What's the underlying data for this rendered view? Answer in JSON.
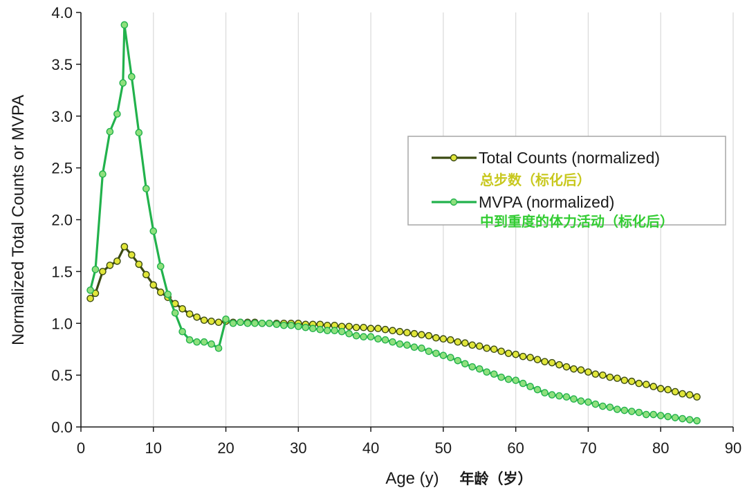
{
  "colors": {
    "total_line": "#3b4a12",
    "total_marker": "#e1e63a",
    "mvpa_line": "#22b24c",
    "mvpa_marker": "#8fe07d",
    "total_cn_text": "#c8c81e",
    "mvpa_cn_text": "#33cc33",
    "grid": "#d9d9d9",
    "axis": "#1a1a1a"
  },
  "chart_data": {
    "type": "line",
    "xlabel": "Age (y)",
    "xlabel_cn": "年龄（岁）",
    "ylabel": "Normalized Total Counts or MVPA",
    "xlim": [
      0,
      90
    ],
    "ylim": [
      0,
      4
    ],
    "xticks": [
      "0",
      "10",
      "20",
      "30",
      "40",
      "50",
      "60",
      "70",
      "80",
      "90"
    ],
    "yticks": [
      "0.0",
      "0.5",
      "1.0",
      "1.5",
      "2.0",
      "2.5",
      "3.0",
      "3.5",
      "4.0"
    ],
    "grid": "vertical",
    "legend_position": "right",
    "series": [
      {
        "name": "Total Counts (normalized)",
        "name_cn": "总步数（标化后）",
        "x": [
          1.3,
          2,
          3,
          4,
          5,
          6,
          7,
          8,
          9,
          10,
          11,
          12,
          13,
          14,
          15,
          16,
          17,
          18,
          19,
          20,
          21,
          22,
          23,
          24,
          25,
          26,
          27,
          28,
          29,
          30,
          31,
          32,
          33,
          34,
          35,
          36,
          37,
          38,
          39,
          40,
          41,
          42,
          43,
          44,
          45,
          46,
          47,
          48,
          49,
          50,
          51,
          52,
          53,
          54,
          55,
          56,
          57,
          58,
          59,
          60,
          61,
          62,
          63,
          64,
          65,
          66,
          67,
          68,
          69,
          70,
          71,
          72,
          73,
          74,
          75,
          76,
          77,
          78,
          79,
          80,
          81,
          82,
          83,
          84,
          85
        ],
        "y": [
          1.24,
          1.29,
          1.5,
          1.56,
          1.6,
          1.74,
          1.66,
          1.57,
          1.47,
          1.37,
          1.3,
          1.25,
          1.19,
          1.14,
          1.09,
          1.06,
          1.03,
          1.02,
          1.01,
          1.02,
          1.01,
          1.01,
          1.01,
          1.01,
          1.0,
          1.0,
          1.0,
          1.0,
          1.0,
          1.0,
          0.99,
          0.99,
          0.99,
          0.98,
          0.98,
          0.97,
          0.97,
          0.96,
          0.96,
          0.95,
          0.95,
          0.94,
          0.93,
          0.92,
          0.91,
          0.9,
          0.89,
          0.88,
          0.86,
          0.85,
          0.84,
          0.82,
          0.81,
          0.79,
          0.78,
          0.76,
          0.75,
          0.73,
          0.71,
          0.7,
          0.68,
          0.67,
          0.65,
          0.63,
          0.62,
          0.6,
          0.58,
          0.56,
          0.55,
          0.53,
          0.51,
          0.5,
          0.48,
          0.47,
          0.45,
          0.44,
          0.42,
          0.41,
          0.39,
          0.37,
          0.36,
          0.34,
          0.32,
          0.31,
          0.29
        ]
      },
      {
        "name": "MVPA (normalized)",
        "name_cn": "中到重度的体力活动（标化后）",
        "x": [
          1.3,
          2,
          3,
          4,
          5,
          5.8,
          6,
          7,
          8,
          9,
          10,
          11,
          12,
          13,
          14,
          15,
          16,
          17,
          18,
          19,
          20,
          21,
          22,
          23,
          24,
          25,
          26,
          27,
          28,
          29,
          30,
          31,
          32,
          33,
          34,
          35,
          36,
          37,
          38,
          39,
          40,
          41,
          42,
          43,
          44,
          45,
          46,
          47,
          48,
          49,
          50,
          51,
          52,
          53,
          54,
          55,
          56,
          57,
          58,
          59,
          60,
          61,
          62,
          63,
          64,
          65,
          66,
          67,
          68,
          69,
          70,
          71,
          72,
          73,
          74,
          75,
          76,
          77,
          78,
          79,
          80,
          81,
          82,
          83,
          84,
          85
        ],
        "y": [
          1.32,
          1.52,
          2.44,
          2.85,
          3.02,
          3.32,
          3.88,
          3.38,
          2.84,
          2.3,
          1.89,
          1.55,
          1.28,
          1.1,
          0.92,
          0.84,
          0.82,
          0.82,
          0.8,
          0.76,
          1.04,
          1.0,
          1.01,
          1.0,
          1.0,
          1.0,
          1.0,
          0.99,
          0.98,
          0.98,
          0.97,
          0.96,
          0.95,
          0.94,
          0.93,
          0.93,
          0.92,
          0.9,
          0.88,
          0.87,
          0.87,
          0.85,
          0.84,
          0.82,
          0.8,
          0.79,
          0.77,
          0.76,
          0.73,
          0.71,
          0.69,
          0.67,
          0.64,
          0.61,
          0.58,
          0.56,
          0.53,
          0.51,
          0.48,
          0.46,
          0.45,
          0.42,
          0.39,
          0.36,
          0.33,
          0.31,
          0.3,
          0.29,
          0.27,
          0.25,
          0.24,
          0.22,
          0.2,
          0.19,
          0.17,
          0.16,
          0.15,
          0.14,
          0.12,
          0.12,
          0.11,
          0.1,
          0.09,
          0.08,
          0.07,
          0.06
        ]
      }
    ]
  }
}
